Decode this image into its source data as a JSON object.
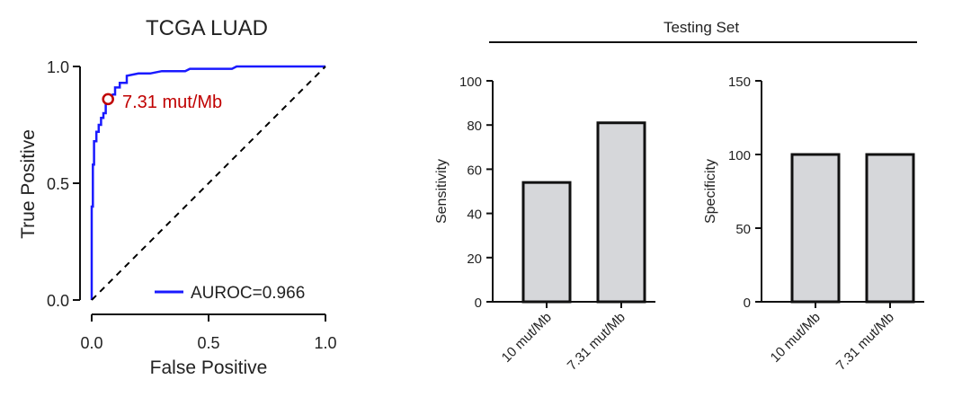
{
  "chart_data": [
    {
      "type": "line",
      "title": "TCGA LUAD",
      "xlabel": "False Positive",
      "ylabel": "True Positive",
      "xlim": [
        0,
        1
      ],
      "ylim": [
        0,
        1
      ],
      "xticks": [
        "0.0",
        "0.5",
        "1.0"
      ],
      "yticks": [
        "0.0",
        "0.5",
        "1.0"
      ],
      "series": [
        {
          "name": "AUROC=0.966",
          "color": "#1a1aff",
          "x": [
            0.0,
            0.0,
            0.005,
            0.005,
            0.01,
            0.01,
            0.02,
            0.02,
            0.03,
            0.03,
            0.04,
            0.04,
            0.05,
            0.05,
            0.06,
            0.06,
            0.07,
            0.07,
            0.08,
            0.09,
            0.1,
            0.1,
            0.12,
            0.12,
            0.15,
            0.15,
            0.2,
            0.25,
            0.3,
            0.4,
            0.42,
            0.6,
            0.62,
            0.8,
            1.0
          ],
          "y": [
            0.0,
            0.4,
            0.4,
            0.58,
            0.58,
            0.68,
            0.68,
            0.72,
            0.72,
            0.75,
            0.75,
            0.78,
            0.78,
            0.8,
            0.8,
            0.84,
            0.84,
            0.86,
            0.87,
            0.88,
            0.88,
            0.91,
            0.91,
            0.93,
            0.93,
            0.96,
            0.97,
            0.97,
            0.98,
            0.98,
            0.99,
            0.99,
            1.0,
            1.0,
            1.0
          ]
        },
        {
          "name": "",
          "style": "dashed",
          "color": "#000000",
          "x": [
            0,
            1
          ],
          "y": [
            0,
            1
          ]
        }
      ],
      "annotation": {
        "label": "7.31 mut/Mb",
        "x": 0.07,
        "y": 0.86,
        "color": "#c00000"
      },
      "legend_position": "bottom-right"
    },
    {
      "type": "bar",
      "group_title": "Testing Set",
      "categories": [
        "10 mut/Mb",
        "7.31 mut/Mb"
      ],
      "values": [
        54,
        81
      ],
      "ylabel": "Sensitivity",
      "ylim": [
        0,
        100
      ],
      "yticks": [
        "0",
        "20",
        "40",
        "60",
        "80",
        "100"
      ],
      "bar_color": "#d6d7da"
    },
    {
      "type": "bar",
      "group_title": "Testing Set",
      "categories": [
        "10 mut/Mb",
        "7.31 mut/Mb"
      ],
      "values": [
        100,
        100
      ],
      "ylabel": "Specificity",
      "ylim": [
        0,
        150
      ],
      "yticks": [
        "0",
        "50",
        "100",
        "150"
      ],
      "bar_color": "#d6d7da"
    }
  ]
}
